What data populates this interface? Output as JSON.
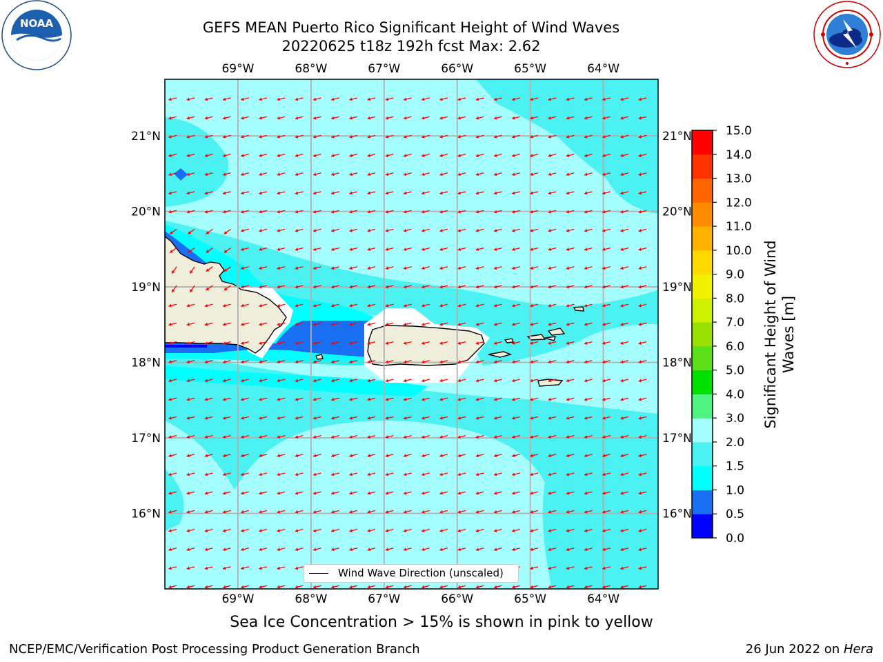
{
  "title": {
    "line1": "GEFS MEAN Puerto Rico Significant Height of Wind Waves",
    "line2": "20220625 t18z 192h fcst   Max: 2.62"
  },
  "logos": {
    "left": {
      "text": "NOAA",
      "icon": "noaa-logo-icon"
    },
    "right": {
      "icon": "nws-logo-icon"
    }
  },
  "axes": {
    "lon_labels": [
      "69°W",
      "68°W",
      "67°W",
      "66°W",
      "65°W",
      "64°W"
    ],
    "lat_labels": [
      "21°N",
      "20°N",
      "19°N",
      "18°N",
      "17°N",
      "16°N"
    ],
    "lon_range": [
      -70.0,
      -63.25
    ],
    "lat_range": [
      15.0,
      21.75
    ]
  },
  "legend": {
    "label": "Wind Wave Direction (unscaled)"
  },
  "colorbar": {
    "label": "Significant Height of Wind Waves [m]",
    "ticks": [
      "0.0",
      "0.5",
      "1.0",
      "1.5",
      "2.0",
      "3.0",
      "4.0",
      "5.0",
      "6.0",
      "7.0",
      "8.0",
      "9.0",
      "10.0",
      "11.0",
      "12.0",
      "13.0",
      "14.0",
      "15.0"
    ],
    "colors": [
      "#0000ff",
      "#1a6ef2",
      "#00ffff",
      "#4cf2f2",
      "#a6ffff",
      "#4df27f",
      "#00e000",
      "#5ce01a",
      "#99e000",
      "#ccf200",
      "#f2f200",
      "#ffd900",
      "#ffb300",
      "#ff8c00",
      "#ff6600",
      "#ff3300",
      "#ff0000"
    ]
  },
  "colors": {
    "sea_light": "#a6ffff",
    "sea_mid": "#4cf2f2",
    "sea_cyan": "#00ffff",
    "sea_blue": "#1a6ef2",
    "land": "#efeedb",
    "arrow": "#ff0000",
    "grid": "#b0b0b0"
  },
  "footer": {
    "note": "Sea Ice Concentration > 15% is shown in pink to yellow",
    "left": "NCEP/EMC/Verification Post Processing Product Generation Branch",
    "right_prefix": "26 Jun 2022 on ",
    "right_host": "Hera"
  }
}
